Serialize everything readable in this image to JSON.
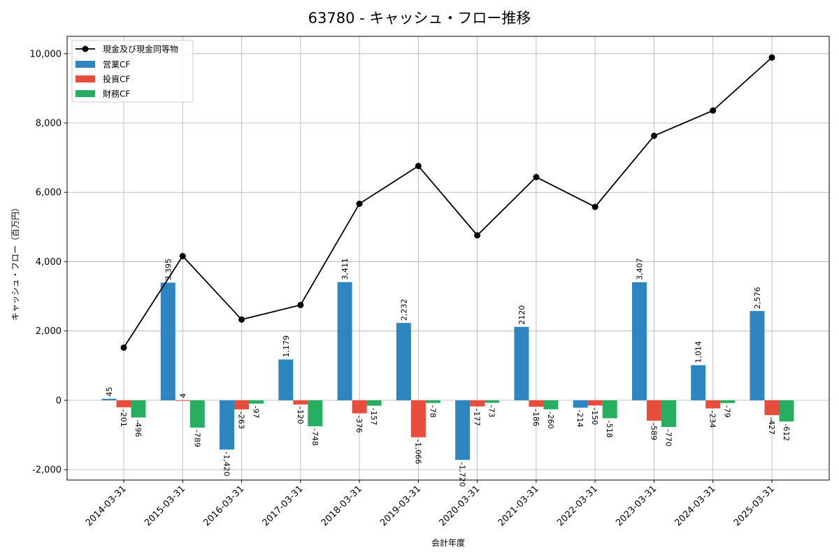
{
  "chart_data": {
    "type": "bar+line",
    "title": "63780 - キャッシュ・フロー推移",
    "xlabel": "会計年度",
    "ylabel": "キャッシュ・フロー（百万円）",
    "ylim": [
      -2300,
      10500
    ],
    "yticks": [
      -2000,
      0,
      2000,
      4000,
      6000,
      8000,
      10000
    ],
    "ytick_labels": [
      "-2,000",
      "0",
      "2,000",
      "4,000",
      "6,000",
      "8,000",
      "10,000"
    ],
    "grid": true,
    "legend_position": "top-left",
    "categories": [
      "2014-03-31",
      "2015-03-31",
      "2016-03-31",
      "2017-03-31",
      "2018-03-31",
      "2019-03-31",
      "2020-03-31",
      "2021-03-31",
      "2022-03-31",
      "2023-03-31",
      "2024-03-31",
      "2025-03-31"
    ],
    "bar_series": [
      {
        "name": "営業CF",
        "color": "#2e86c1",
        "values": [
          45,
          3395,
          -1420,
          1179,
          3411,
          2232,
          -1720,
          2120,
          -214,
          3407,
          1014,
          2576
        ],
        "labels": [
          "45",
          "3,395",
          "-1,420",
          "1,179",
          "3,411",
          "2,232",
          "-1,720",
          "2120",
          "-214",
          "3,407",
          "1,014",
          "2,576"
        ]
      },
      {
        "name": "投資CF",
        "color": "#e74c3c",
        "values": [
          -201,
          4,
          -263,
          -120,
          -376,
          -1066,
          -177,
          -186,
          -150,
          -589,
          -234,
          -427
        ],
        "labels": [
          "-201",
          "4",
          "-263",
          "-120",
          "-376",
          "-1,066",
          "-177",
          "-186",
          "-150",
          "-589",
          "-234",
          "-427"
        ]
      },
      {
        "name": "財務CF",
        "color": "#27ae60",
        "values": [
          -496,
          -789,
          -97,
          -748,
          -157,
          -78,
          -73,
          -260,
          -518,
          -770,
          -79,
          -612
        ],
        "labels": [
          "-496",
          "-789",
          "-97",
          "-748",
          "-157",
          "-78",
          "-73",
          "-260",
          "-518",
          "-770",
          "-79",
          "-612"
        ]
      }
    ],
    "line_series": {
      "name": "現金及び現金同等物",
      "color": "#000000",
      "values": [
        1520,
        4160,
        2330,
        2750,
        5670,
        6760,
        4760,
        6440,
        5580,
        7630,
        8360,
        9890
      ]
    }
  }
}
